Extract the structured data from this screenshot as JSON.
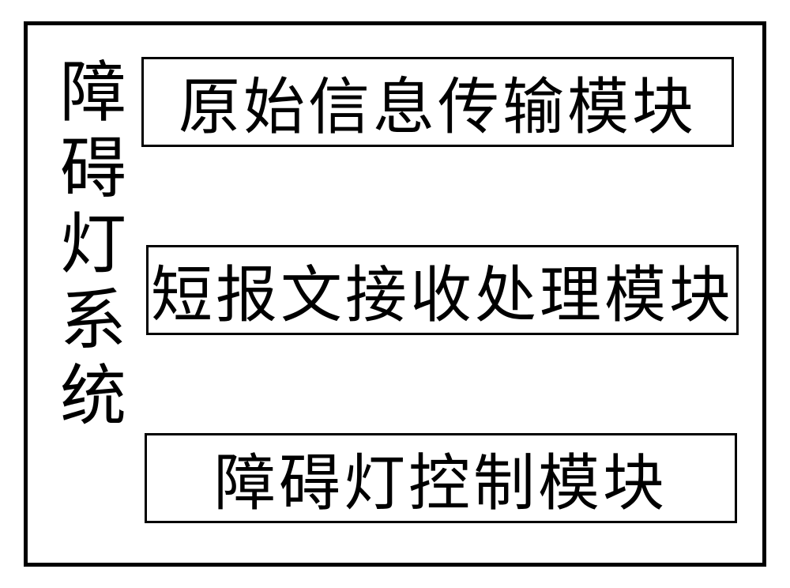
{
  "diagram": {
    "type": "block-diagram",
    "outer_border_color": "#000000",
    "outer_border_width": 5,
    "background_color": "#ffffff",
    "system_label": "障碍灯系统",
    "system_label_fontsize": 84,
    "system_label_color": "#000000",
    "modules": [
      {
        "label": "原始信息传输模块",
        "border_color": "#000000",
        "border_width": 3,
        "fontsize": 78,
        "text_color": "#000000"
      },
      {
        "label": "短报文接收处理模块",
        "border_color": "#000000",
        "border_width": 3,
        "fontsize": 78,
        "text_color": "#000000"
      },
      {
        "label": "障碍灯控制模块",
        "border_color": "#000000",
        "border_width": 3,
        "fontsize": 78,
        "text_color": "#000000"
      }
    ]
  }
}
